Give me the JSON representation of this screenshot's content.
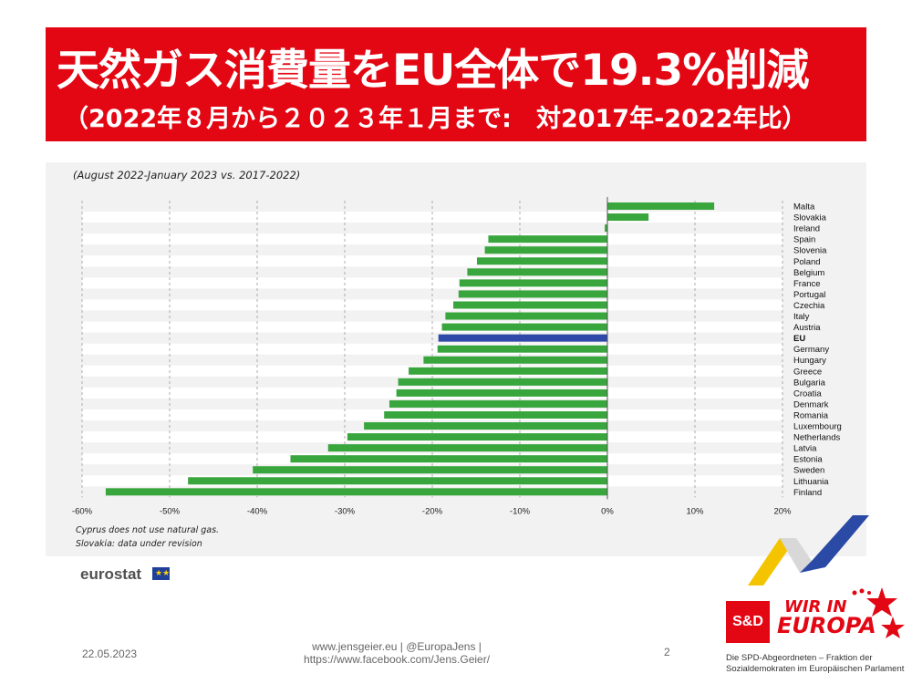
{
  "header": {
    "title": "天然ガス消費量をEU全体で19.3%削減",
    "subtitle": "（2022年８月から２０２３年１月まで:　対2017年-2022年比）"
  },
  "chart_data": {
    "type": "bar",
    "orientation": "horizontal",
    "subtitle": "(August 2022-January 2023 vs. 2017-2022)",
    "categories": [
      "Malta",
      "Slovakia",
      "Ireland",
      "Spain",
      "Slovenia",
      "Poland",
      "Belgium",
      "France",
      "Portugal",
      "Czechia",
      "Italy",
      "Austria",
      "EU",
      "Germany",
      "Hungary",
      "Greece",
      "Bulgaria",
      "Croatia",
      "Denmark",
      "Romania",
      "Luxembourg",
      "Netherlands",
      "Latvia",
      "Estonia",
      "Sweden",
      "Lithuania",
      "Finland"
    ],
    "values": [
      12.2,
      4.7,
      -0.3,
      -13.6,
      -14.0,
      -14.9,
      -16.0,
      -16.9,
      -17.0,
      -17.6,
      -18.5,
      -18.9,
      -19.3,
      -19.4,
      -21.0,
      -22.7,
      -23.9,
      -24.1,
      -24.9,
      -25.5,
      -27.8,
      -29.7,
      -31.9,
      -36.2,
      -40.5,
      -47.9,
      -57.3
    ],
    "highlight": "EU",
    "colors": {
      "bar": "#38a53d",
      "highlight": "#2f49a8",
      "grid": "#9a9a9a",
      "band": "#ffffff"
    },
    "xlim": [
      -60,
      20
    ],
    "xticks": [
      -60,
      -50,
      -40,
      -30,
      -20,
      -10,
      0,
      10,
      20
    ],
    "xtick_labels": [
      "-60%",
      "-50%",
      "-40%",
      "-30%",
      "-20%",
      "-10%",
      "0%",
      "10%",
      "20%"
    ],
    "grid": true,
    "notes": [
      "Cyprus does not use natural gas.",
      "Slovakia: data under revision"
    ],
    "source": "eurostat"
  },
  "footer": {
    "date": "22.05.2023",
    "links_line1": "www.jensgeier.eu | @EuropaJens |",
    "links_line2": "https://www.facebook.com/Jens.Geier/",
    "page": "2"
  },
  "branding": {
    "party": "S&D",
    "slogan_line1": "WIR IN",
    "slogan_line2": "EUROPA",
    "disclaimer_line1": "Die SPD-Abgeordneten – Fraktion der",
    "disclaimer_line2": "Sozialdemokraten im Europäischen Parlament"
  }
}
